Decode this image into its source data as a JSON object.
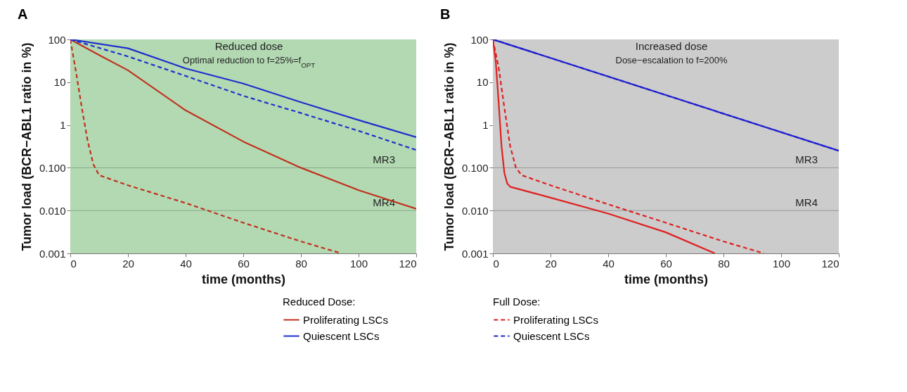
{
  "chart_data": [
    {
      "type": "line",
      "title": "A",
      "xlabel": "time (months)",
      "ylabel": "Tumor load (BCR−ABL1 ratio in %)",
      "legend_title": "Reduced Dose:",
      "legend": "bottom right",
      "log": "y",
      "xlim": [
        0,
        120
      ],
      "xticks": [
        0,
        20,
        40,
        60,
        80,
        100,
        120
      ],
      "ylim": [
        0.001,
        100
      ],
      "yticks": [
        {
          "value": 0.001,
          "label": "0.001"
        },
        {
          "value": 0.01,
          "label": "0.010"
        },
        {
          "value": 0.1,
          "label": "0.100"
        },
        1,
        10,
        100
      ],
      "annotations": [
        "Reduced dose",
        "Optimal reduction to f=25%=f$_{OPT}$"
      ],
      "bands": [
        {
          "axis": "x",
          "from": 0,
          "to": 120,
          "color": "#b3d9b3"
        }
      ],
      "ref_lines": [
        {
          "axis": "y",
          "value": 0.1,
          "label": "MR3",
          "color": "#8aa88a"
        },
        {
          "axis": "y",
          "value": 0.01,
          "label": "MR4",
          "color": "#8aa88a"
        }
      ],
      "series": [
        {
          "name": "Proliferating LSCs",
          "color": "#c0321e",
          "line_style": "solid",
          "x": [
            0,
            10,
            20,
            40,
            60,
            80,
            100,
            120
          ],
          "values": [
            100,
            43,
            19,
            2.2,
            0.41,
            0.1,
            0.03,
            0.011
          ]
        },
        {
          "name": "Quiescent LSCs",
          "color": "#1f2fcc",
          "line_style": "solid",
          "x": [
            0,
            20,
            40,
            60,
            80,
            100,
            120
          ],
          "values": [
            100,
            62,
            21,
            9.3,
            3.4,
            1.3,
            0.52
          ]
        },
        {
          "color": "#c0321e",
          "line_style": "dashed",
          "x": [
            0,
            2,
            4,
            6,
            8,
            10,
            20,
            40,
            60,
            80,
            94
          ],
          "values": [
            100,
            17,
            2.5,
            0.43,
            0.12,
            0.067,
            0.039,
            0.015,
            0.0052,
            0.0019,
            0.001
          ]
        },
        {
          "color": "#1f2fcc",
          "line_style": "dashed",
          "x": [
            0,
            20,
            40,
            60,
            80,
            100,
            120
          ],
          "values": [
            100,
            40,
            14,
            4.8,
            1.9,
            0.73,
            0.26
          ]
        }
      ]
    },
    {
      "type": "line",
      "title": "B",
      "xlabel": "time (months)",
      "ylabel": "Tumor load (BCR−ABL1 ratio in %)",
      "legend_title": "Full Dose:",
      "legend": "bottom left",
      "log": "y",
      "xlim": [
        0,
        120
      ],
      "xticks": [
        0,
        20,
        40,
        60,
        80,
        100,
        120
      ],
      "ylim": [
        0.001,
        100
      ],
      "yticks": [
        {
          "value": 0.001,
          "label": "0.001"
        },
        {
          "value": 0.01,
          "label": "0.010"
        },
        {
          "value": 0.1,
          "label": "0.100"
        },
        1,
        10,
        100
      ],
      "annotations": [
        "Increased dose",
        "Dose−escalation to f=200%"
      ],
      "bands": [
        {
          "axis": "x",
          "from": 0,
          "to": 120,
          "color": "#cccccc"
        }
      ],
      "ref_lines": [
        {
          "axis": "y",
          "value": 0.1,
          "label": "MR3",
          "color": "#999999"
        },
        {
          "axis": "y",
          "value": 0.01,
          "label": "MR4",
          "color": "#999999"
        }
      ],
      "series": [
        {
          "color": "#e02020",
          "line_style": "solid",
          "x": [
            0,
            1,
            2,
            3,
            4,
            5,
            6,
            20,
            40,
            60,
            77
          ],
          "values": [
            100,
            30,
            3.4,
            0.32,
            0.075,
            0.043,
            0.036,
            0.02,
            0.0085,
            0.0031,
            0.001
          ]
        },
        {
          "color": "#2020d0",
          "line_style": "solid",
          "x": [
            0,
            120
          ],
          "values": [
            100,
            0.25
          ]
        },
        {
          "name": "Proliferating LSCs",
          "color": "#e02020",
          "line_style": "dashed",
          "x": [
            0,
            2,
            4,
            6,
            8,
            10,
            20,
            40,
            60,
            80,
            94
          ],
          "values": [
            100,
            22,
            2.5,
            0.32,
            0.1,
            0.067,
            0.039,
            0.014,
            0.0052,
            0.0019,
            0.001
          ]
        },
        {
          "name": "Quiescent LSCs",
          "color": "#2020d0",
          "line_style": "dashed",
          "x": [
            0,
            120
          ],
          "values": [
            100,
            0.25
          ]
        }
      ]
    }
  ]
}
